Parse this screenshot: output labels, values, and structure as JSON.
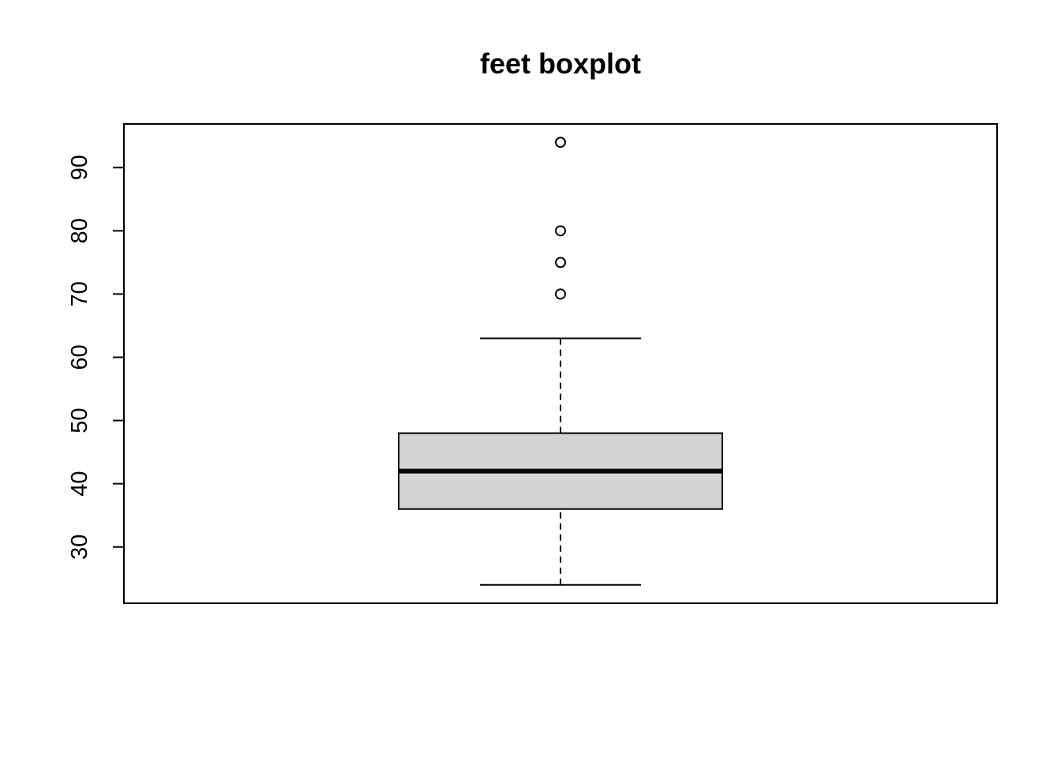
{
  "chart_data": {
    "type": "boxplot",
    "title": "feet boxplot",
    "xlabel": "",
    "ylabel": "",
    "ylim": [
      21.1,
      96.9
    ],
    "yticks": [
      30,
      40,
      50,
      60,
      70,
      80,
      90
    ],
    "grid": false,
    "legend": "none",
    "series": [
      {
        "whisker_low": 24,
        "q1": 36,
        "median": 42,
        "q3": 48,
        "whisker_high": 63,
        "outliers": [
          70,
          75,
          80,
          94
        ]
      }
    ],
    "colors": {
      "box_fill": "#d3d3d3",
      "stroke": "#000000",
      "background": "#ffffff"
    }
  }
}
